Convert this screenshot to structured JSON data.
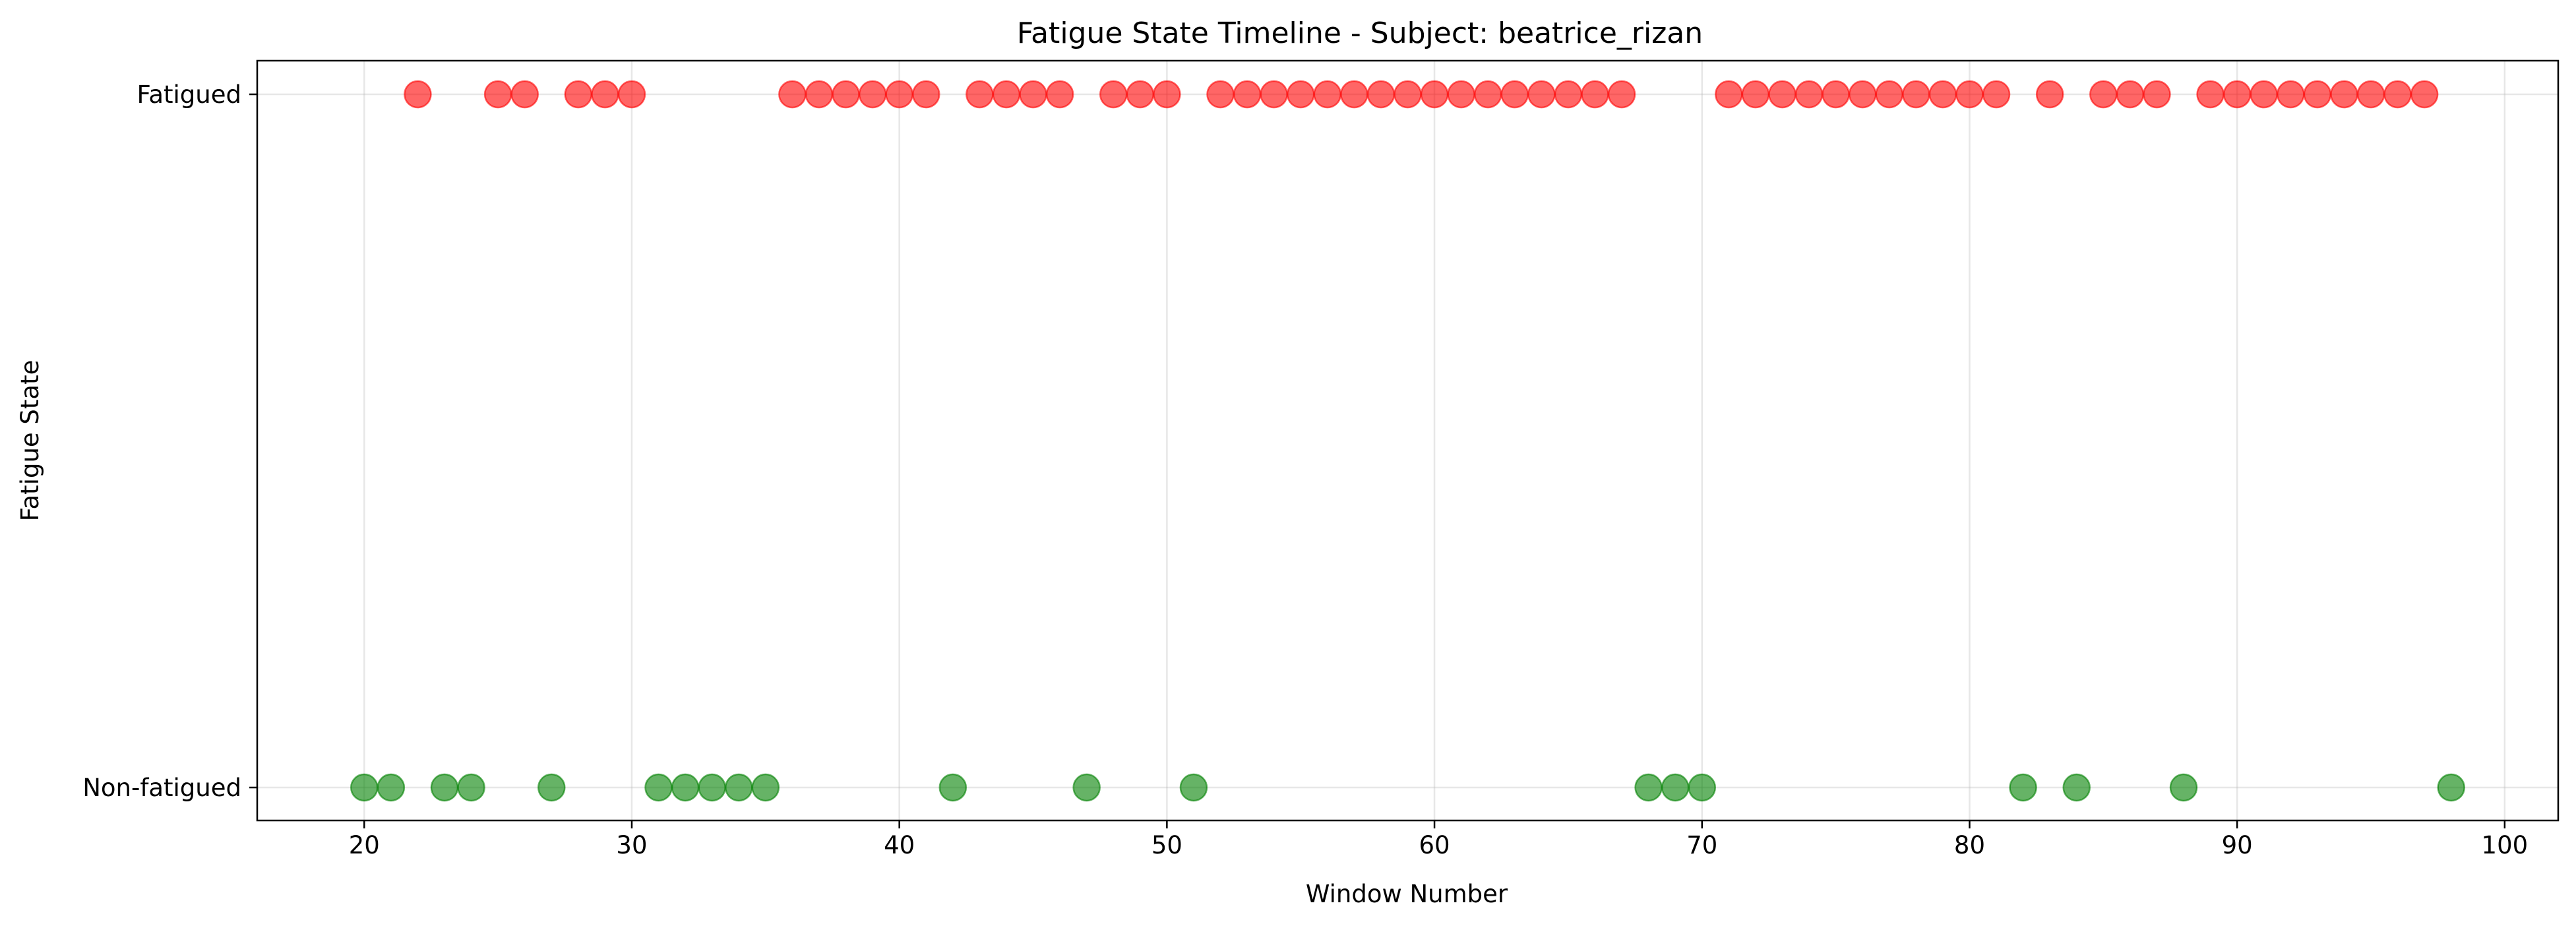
{
  "chart_data": {
    "type": "scatter",
    "title": "Fatigue State Timeline - Subject: beatrice_rizan",
    "xlabel": "Window Number",
    "ylabel": "Fatigue State",
    "xlim": [
      16,
      102
    ],
    "xticks": [
      20,
      30,
      40,
      50,
      60,
      70,
      80,
      90,
      100
    ],
    "y_categories": [
      "Non-fatigued",
      "Fatigued"
    ],
    "grid": true,
    "legend": "none",
    "colors": {
      "Fatigued": "#ff0000",
      "Non-fatigued": "#008000"
    },
    "series": [
      {
        "category": "Fatigued",
        "x": [
          22,
          25,
          26,
          28,
          29,
          30,
          36,
          37,
          38,
          39,
          40,
          41,
          43,
          44,
          45,
          46,
          48,
          49,
          50,
          52,
          53,
          54,
          55,
          56,
          57,
          58,
          59,
          60,
          61,
          62,
          63,
          64,
          65,
          66,
          67,
          71,
          72,
          73,
          74,
          75,
          76,
          77,
          78,
          79,
          80,
          81,
          83,
          85,
          86,
          87,
          89,
          90,
          91,
          92,
          93,
          94,
          95,
          96,
          97
        ]
      },
      {
        "category": "Non-fatigued",
        "x": [
          20,
          21,
          23,
          24,
          27,
          31,
          32,
          33,
          34,
          35,
          42,
          47,
          51,
          68,
          69,
          70,
          82,
          84,
          88,
          98
        ]
      }
    ]
  }
}
